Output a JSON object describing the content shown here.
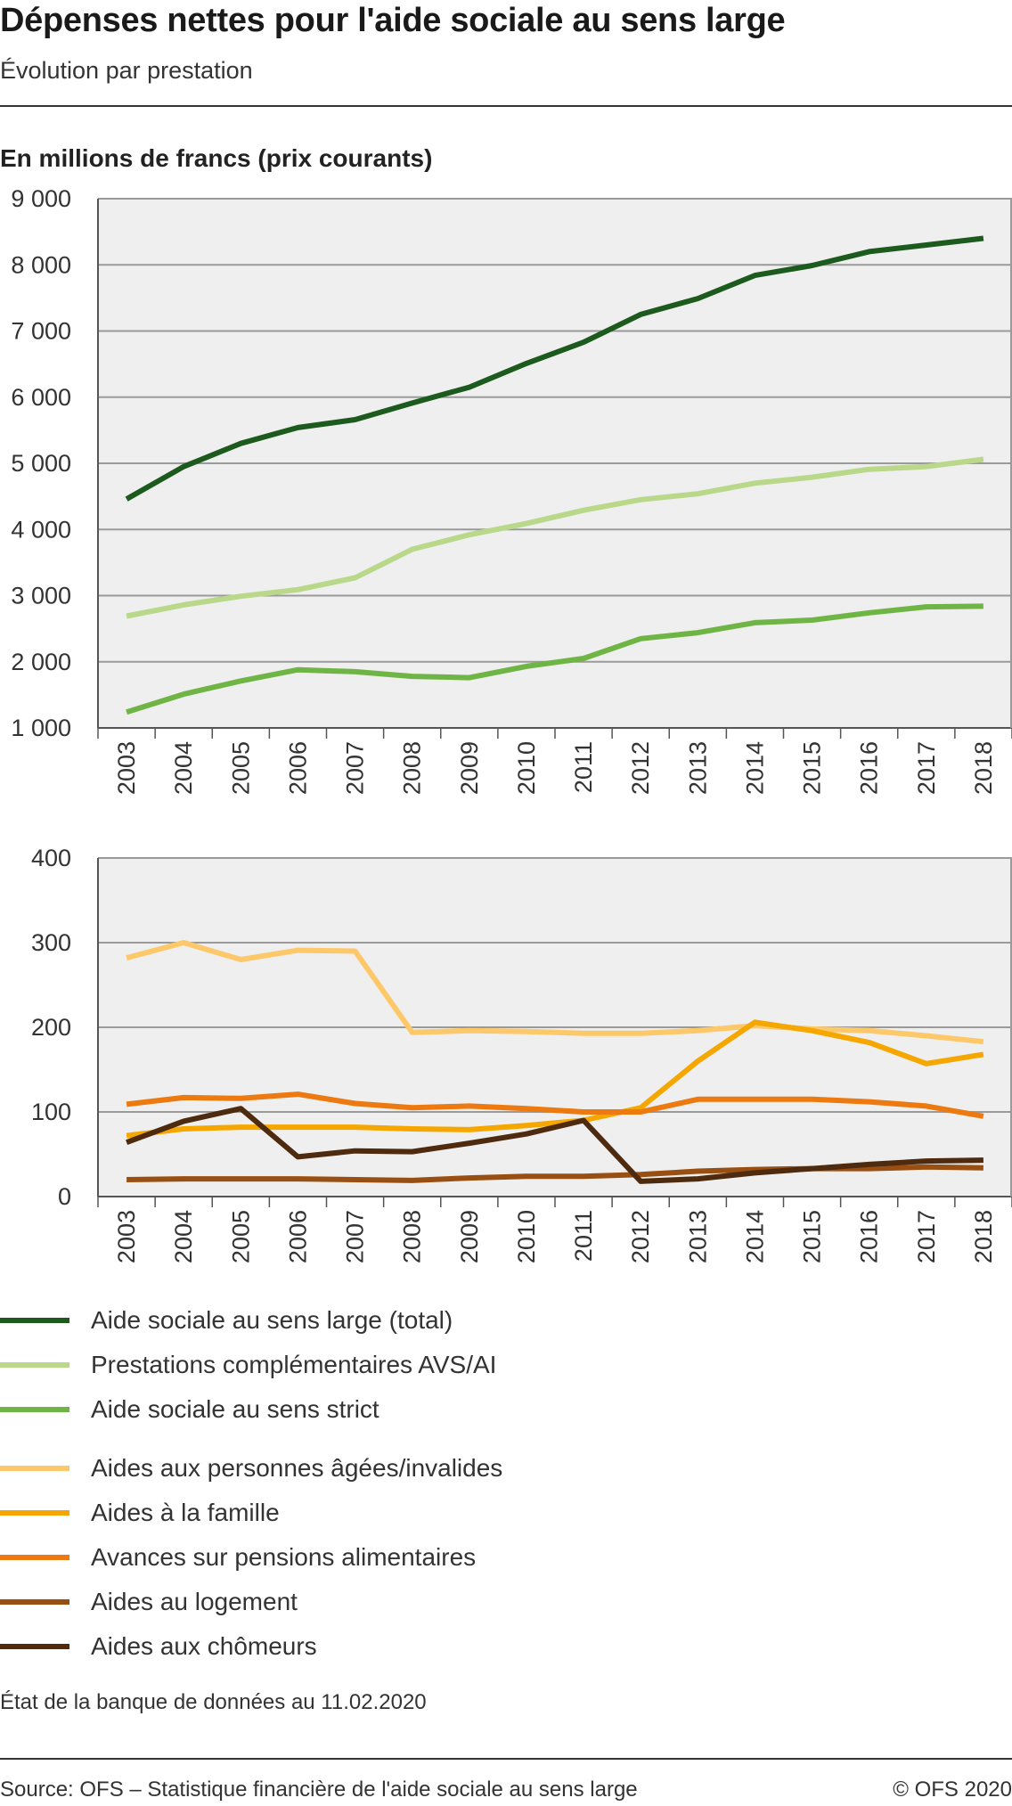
{
  "header": {
    "title": "Dépenses nettes pour l'aide sociale au sens large",
    "subtitle": "Évolution par prestation",
    "unit_label": "En millions de francs (prix courants)"
  },
  "footer": {
    "note": "État de la banque de données au 11.02.2020",
    "source": "Source: OFS – Statistique financière de l'aide sociale au sens large",
    "copyright": "© OFS 2020"
  },
  "chart_data": [
    {
      "type": "line",
      "ylim": [
        1000,
        9000
      ],
      "yticks": [
        1000,
        2000,
        3000,
        4000,
        5000,
        6000,
        7000,
        8000,
        9000
      ],
      "ytick_labels": [
        "1 000",
        "2 000",
        "3 000",
        "4 000",
        "5 000",
        "6 000",
        "7 000",
        "8 000",
        "9 000"
      ],
      "grid": true,
      "x": [
        "2003",
        "2004",
        "2005",
        "2006",
        "2007",
        "2008",
        "2009",
        "2010",
        "2011",
        "2012",
        "2013",
        "2014",
        "2015",
        "2016",
        "2017",
        "2018"
      ],
      "series": [
        {
          "name": "Aide sociale au sens large (total)",
          "color": "#1d5a1d",
          "values": [
            4460,
            4950,
            5300,
            5540,
            5660,
            5910,
            6150,
            6510,
            6830,
            7250,
            7490,
            7840,
            7990,
            8200,
            8300,
            8400
          ]
        },
        {
          "name": "Prestations complémentaires AVS/AI",
          "color": "#b9d88a",
          "values": [
            2690,
            2860,
            2990,
            3090,
            3270,
            3700,
            3920,
            4090,
            4290,
            4450,
            4540,
            4700,
            4790,
            4910,
            4950,
            5060
          ]
        },
        {
          "name": "Aide sociale au sens strict",
          "color": "#6fb545",
          "values": [
            1240,
            1510,
            1710,
            1880,
            1850,
            1780,
            1760,
            1930,
            2050,
            2350,
            2440,
            2590,
            2630,
            2740,
            2830,
            2840
          ]
        }
      ]
    },
    {
      "type": "line",
      "ylim": [
        0,
        400
      ],
      "yticks": [
        0,
        100,
        200,
        300,
        400
      ],
      "ytick_labels": [
        "0",
        "100",
        "200",
        "300",
        "400"
      ],
      "grid": true,
      "x": [
        "2003",
        "2004",
        "2005",
        "2006",
        "2007",
        "2008",
        "2009",
        "2010",
        "2011",
        "2012",
        "2013",
        "2014",
        "2015",
        "2016",
        "2017",
        "2018"
      ],
      "series": [
        {
          "name": "Aides aux personnes âgées/invalides",
          "color": "#fdc86a",
          "values": [
            282,
            300,
            280,
            291,
            290,
            194,
            196,
            195,
            193,
            193,
            196,
            202,
            198,
            196,
            190,
            183
          ]
        },
        {
          "name": "Aides à la famille",
          "color": "#f5a700",
          "values": [
            72,
            80,
            82,
            82,
            82,
            80,
            79,
            84,
            90,
            105,
            160,
            206,
            196,
            182,
            157,
            168
          ]
        },
        {
          "name": "Avances sur pensions alimentaires",
          "color": "#ec7a10",
          "values": [
            109,
            117,
            116,
            121,
            110,
            105,
            107,
            104,
            100,
            100,
            115,
            115,
            115,
            112,
            107,
            95
          ]
        },
        {
          "name": "Aides au logement",
          "color": "#9a4f12",
          "values": [
            20,
            21,
            21,
            21,
            20,
            19,
            22,
            24,
            24,
            26,
            30,
            32,
            33,
            33,
            35,
            34
          ]
        },
        {
          "name": "Aides aux chômeurs",
          "color": "#4e2a0e",
          "values": [
            64,
            89,
            104,
            47,
            54,
            53,
            63,
            74,
            90,
            18,
            21,
            28,
            33,
            38,
            42,
            43
          ]
        }
      ]
    }
  ]
}
